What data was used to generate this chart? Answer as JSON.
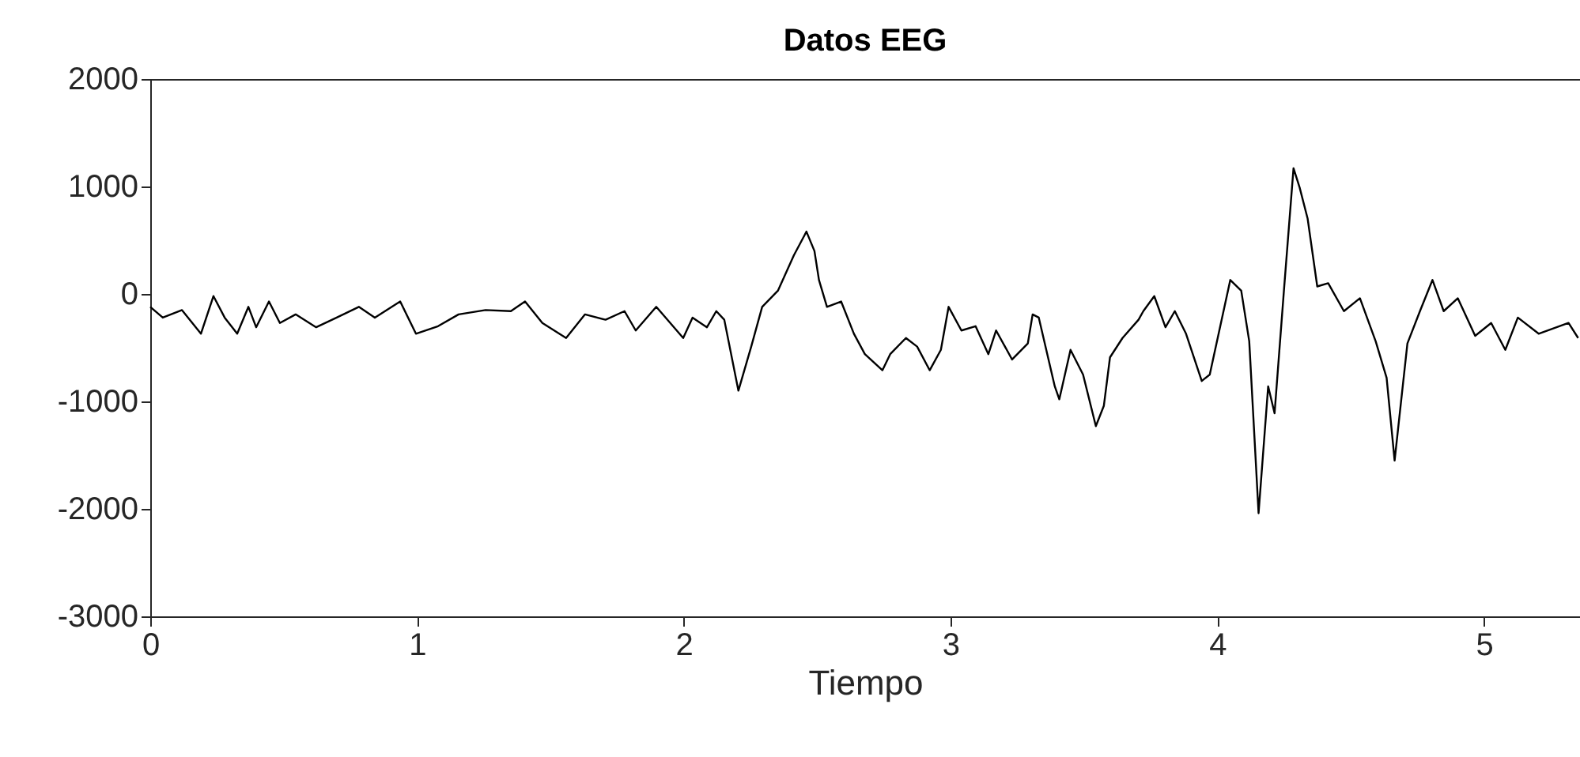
{
  "chart_data": {
    "type": "line",
    "title": "Datos EEG",
    "xlabel": "Tiempo",
    "x": [
      0,
      0.047,
      0.119,
      0.19,
      0.237,
      0.279,
      0.326,
      0.368,
      0.397,
      0.445,
      0.486,
      0.545,
      0.622,
      0.699,
      0.782,
      0.842,
      0.937,
      0.996,
      1.079,
      1.156,
      1.257,
      1.352,
      1.405,
      1.47,
      1.559,
      1.63,
      1.707,
      1.778,
      1.82,
      1.897,
      1.998,
      2.033,
      2.087,
      2.122,
      2.152,
      2.205,
      2.253,
      2.294,
      2.353,
      2.413,
      2.46,
      2.49,
      2.507,
      2.537,
      2.59,
      2.638,
      2.679,
      2.745,
      2.774,
      2.833,
      2.875,
      2.922,
      2.964,
      2.993,
      3.041,
      3.094,
      3.142,
      3.171,
      3.231,
      3.29,
      3.308,
      3.331,
      3.391,
      3.408,
      3.45,
      3.497,
      3.545,
      3.575,
      3.598,
      3.645,
      3.705,
      3.723,
      3.764,
      3.806,
      3.841,
      3.883,
      3.942,
      3.972,
      4.049,
      4.09,
      4.12,
      4.155,
      4.191,
      4.215,
      4.25,
      4.286,
      4.309,
      4.339,
      4.375,
      4.416,
      4.475,
      4.535,
      4.594,
      4.635,
      4.665,
      4.713,
      4.76,
      4.807,
      4.849,
      4.902,
      4.967,
      5.027,
      5.08,
      5.127,
      5.205,
      5.317,
      5.353
    ],
    "series": [
      {
        "color": "#000000",
        "values": [
          -120,
          -220,
          -150,
          -370,
          -20,
          -220,
          -370,
          -120,
          -310,
          -70,
          -270,
          -190,
          -310,
          -220,
          -120,
          -220,
          -70,
          -370,
          -300,
          -190,
          -150,
          -160,
          -70,
          -270,
          -410,
          -190,
          -240,
          -160,
          -340,
          -120,
          -410,
          -220,
          -310,
          -160,
          -240,
          -900,
          -490,
          -120,
          30,
          360,
          580,
          400,
          130,
          -120,
          -70,
          -370,
          -560,
          -710,
          -560,
          -410,
          -490,
          -710,
          -520,
          -120,
          -340,
          -300,
          -560,
          -340,
          -610,
          -460,
          -190,
          -220,
          -860,
          -980,
          -520,
          -750,
          -1230,
          -1040,
          -590,
          -410,
          -240,
          -160,
          -20,
          -310,
          -160,
          -370,
          -810,
          -750,
          130,
          30,
          -440,
          -2040,
          -860,
          -1110,
          30,
          1170,
          990,
          700,
          70,
          100,
          -160,
          -40,
          -440,
          -780,
          -1550,
          -460,
          -160,
          130,
          -160,
          -40,
          -390,
          -270,
          -520,
          -220,
          -370,
          -270,
          -410
        ]
      }
    ],
    "xlim": [
      0,
      5.36
    ],
    "ylim": [
      -3000,
      2000
    ],
    "xticks": [
      0,
      1,
      2,
      3,
      4,
      5
    ],
    "yticks": [
      -3000,
      -2000,
      -1000,
      0,
      1000,
      2000
    ],
    "grid": false,
    "legend": false,
    "marker": "none",
    "line_style": "solid"
  }
}
